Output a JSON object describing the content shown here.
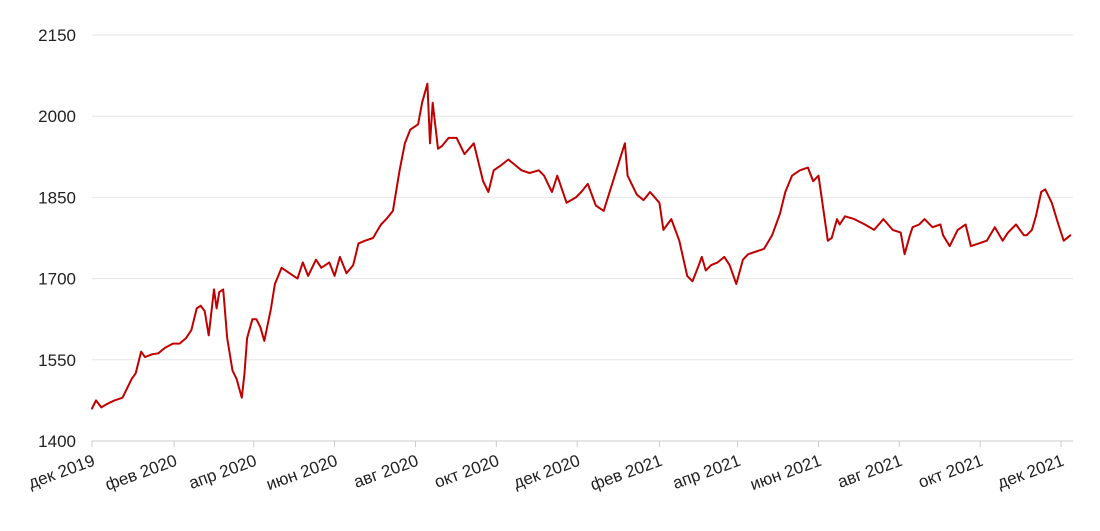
{
  "chart_data": {
    "type": "line",
    "title": "",
    "xlabel": "",
    "ylabel": "",
    "ylim": [
      1400,
      2150
    ],
    "y_ticks": [
      1400,
      1550,
      1700,
      1850,
      2000,
      2150
    ],
    "y_tick_labels": [
      "1400",
      "1550",
      "1700",
      "1850",
      "2000",
      "2150"
    ],
    "x_range": [
      "2019-12-01",
      "2021-12-10"
    ],
    "x_ticks": [
      "2019-12-01",
      "2020-02-01",
      "2020-04-01",
      "2020-06-01",
      "2020-08-01",
      "2020-10-01",
      "2020-12-01",
      "2021-02-01",
      "2021-04-01",
      "2021-06-01",
      "2021-08-01",
      "2021-10-01",
      "2021-12-01"
    ],
    "x_tick_labels": [
      "дек 2019",
      "фев 2020",
      "апр 2020",
      "июн 2020",
      "авг 2020",
      "окт 2020",
      "дек 2020",
      "фев 2021",
      "апр 2021",
      "июн 2021",
      "авг 2021",
      "окт 2021",
      "дек 2021"
    ],
    "grid": true,
    "legend": "none",
    "line_color": "#c00000",
    "series": [
      {
        "x": [
          "2019-12-01",
          "2019-12-04",
          "2019-12-08",
          "2019-12-12",
          "2019-12-18",
          "2019-12-24",
          "2019-12-31",
          "2020-01-03",
          "2020-01-07",
          "2020-01-10",
          "2020-01-15",
          "2020-01-20",
          "2020-01-25",
          "2020-01-31",
          "2020-02-05",
          "2020-02-10",
          "2020-02-14",
          "2020-02-18",
          "2020-02-21",
          "2020-02-24",
          "2020-02-27",
          "2020-03-02",
          "2020-03-04",
          "2020-03-06",
          "2020-03-09",
          "2020-03-12",
          "2020-03-16",
          "2020-03-19",
          "2020-03-23",
          "2020-03-25",
          "2020-03-27",
          "2020-03-31",
          "2020-04-03",
          "2020-04-06",
          "2020-04-09",
          "2020-04-14",
          "2020-04-17",
          "2020-04-22",
          "2020-04-28",
          "2020-05-04",
          "2020-05-08",
          "2020-05-12",
          "2020-05-18",
          "2020-05-22",
          "2020-05-28",
          "2020-06-01",
          "2020-06-05",
          "2020-06-10",
          "2020-06-15",
          "2020-06-19",
          "2020-06-24",
          "2020-06-30",
          "2020-07-06",
          "2020-07-10",
          "2020-07-15",
          "2020-07-20",
          "2020-07-24",
          "2020-07-28",
          "2020-08-03",
          "2020-08-06",
          "2020-08-10",
          "2020-08-12",
          "2020-08-14",
          "2020-08-18",
          "2020-08-21",
          "2020-08-26",
          "2020-09-01",
          "2020-09-07",
          "2020-09-14",
          "2020-09-21",
          "2020-09-25",
          "2020-09-29",
          "2020-10-05",
          "2020-10-10",
          "2020-10-15",
          "2020-10-20",
          "2020-10-26",
          "2020-11-02",
          "2020-11-06",
          "2020-11-09",
          "2020-11-12",
          "2020-11-16",
          "2020-11-23",
          "2020-11-30",
          "2020-12-04",
          "2020-12-09",
          "2020-12-15",
          "2020-12-21",
          "2020-12-28",
          "2021-01-04",
          "2021-01-06",
          "2021-01-08",
          "2021-01-12",
          "2021-01-15",
          "2021-01-20",
          "2021-01-25",
          "2021-02-01",
          "2021-02-04",
          "2021-02-10",
          "2021-02-16",
          "2021-02-22",
          "2021-02-26",
          "2021-03-02",
          "2021-03-05",
          "2021-03-08",
          "2021-03-12",
          "2021-03-17",
          "2021-03-22",
          "2021-03-26",
          "2021-03-31",
          "2021-04-05",
          "2021-04-09",
          "2021-04-15",
          "2021-04-21",
          "2021-04-27",
          "2021-05-03",
          "2021-05-07",
          "2021-05-12",
          "2021-05-18",
          "2021-05-24",
          "2021-05-28",
          "2021-06-01",
          "2021-06-04",
          "2021-06-08",
          "2021-06-11",
          "2021-06-15",
          "2021-06-17",
          "2021-06-21",
          "2021-06-28",
          "2021-07-06",
          "2021-07-13",
          "2021-07-20",
          "2021-07-27",
          "2021-08-02",
          "2021-08-05",
          "2021-08-09",
          "2021-08-11",
          "2021-08-16",
          "2021-08-20",
          "2021-08-26",
          "2021-09-01",
          "2021-09-03",
          "2021-09-08",
          "2021-09-14",
          "2021-09-20",
          "2021-09-24",
          "2021-09-30",
          "2021-10-06",
          "2021-10-12",
          "2021-10-18",
          "2021-10-22",
          "2021-10-28",
          "2021-11-03",
          "2021-11-05",
          "2021-11-09",
          "2021-11-12",
          "2021-11-16",
          "2021-11-19",
          "2021-11-24",
          "2021-11-29",
          "2021-12-03",
          "2021-12-08"
        ],
        "values": [
          1460,
          1475,
          1462,
          1468,
          1475,
          1480,
          1515,
          1525,
          1565,
          1555,
          1560,
          1562,
          1572,
          1580,
          1580,
          1590,
          1605,
          1645,
          1650,
          1640,
          1595,
          1680,
          1645,
          1675,
          1680,
          1590,
          1530,
          1515,
          1480,
          1525,
          1590,
          1625,
          1625,
          1610,
          1585,
          1645,
          1690,
          1720,
          1710,
          1700,
          1730,
          1705,
          1735,
          1720,
          1730,
          1705,
          1740,
          1710,
          1725,
          1765,
          1770,
          1775,
          1800,
          1810,
          1825,
          1900,
          1950,
          1975,
          1985,
          2025,
          2060,
          1950,
          2025,
          1940,
          1945,
          1960,
          1960,
          1930,
          1950,
          1880,
          1860,
          1900,
          1910,
          1920,
          1910,
          1900,
          1895,
          1900,
          1890,
          1875,
          1860,
          1890,
          1840,
          1850,
          1860,
          1875,
          1835,
          1825,
          1880,
          1935,
          1950,
          1890,
          1870,
          1855,
          1845,
          1860,
          1840,
          1790,
          1810,
          1770,
          1705,
          1695,
          1720,
          1740,
          1715,
          1725,
          1730,
          1740,
          1725,
          1690,
          1735,
          1745,
          1750,
          1755,
          1780,
          1820,
          1860,
          1890,
          1900,
          1905,
          1880,
          1890,
          1840,
          1770,
          1775,
          1810,
          1800,
          1815,
          1810,
          1800,
          1790,
          1810,
          1790,
          1785,
          1745,
          1780,
          1795,
          1800,
          1810,
          1795,
          1800,
          1780,
          1760,
          1790,
          1800,
          1760,
          1765,
          1770,
          1795,
          1770,
          1785,
          1800,
          1780,
          1780,
          1790,
          1815,
          1860,
          1865,
          1840,
          1800,
          1770,
          1780
        ]
      }
    ]
  }
}
